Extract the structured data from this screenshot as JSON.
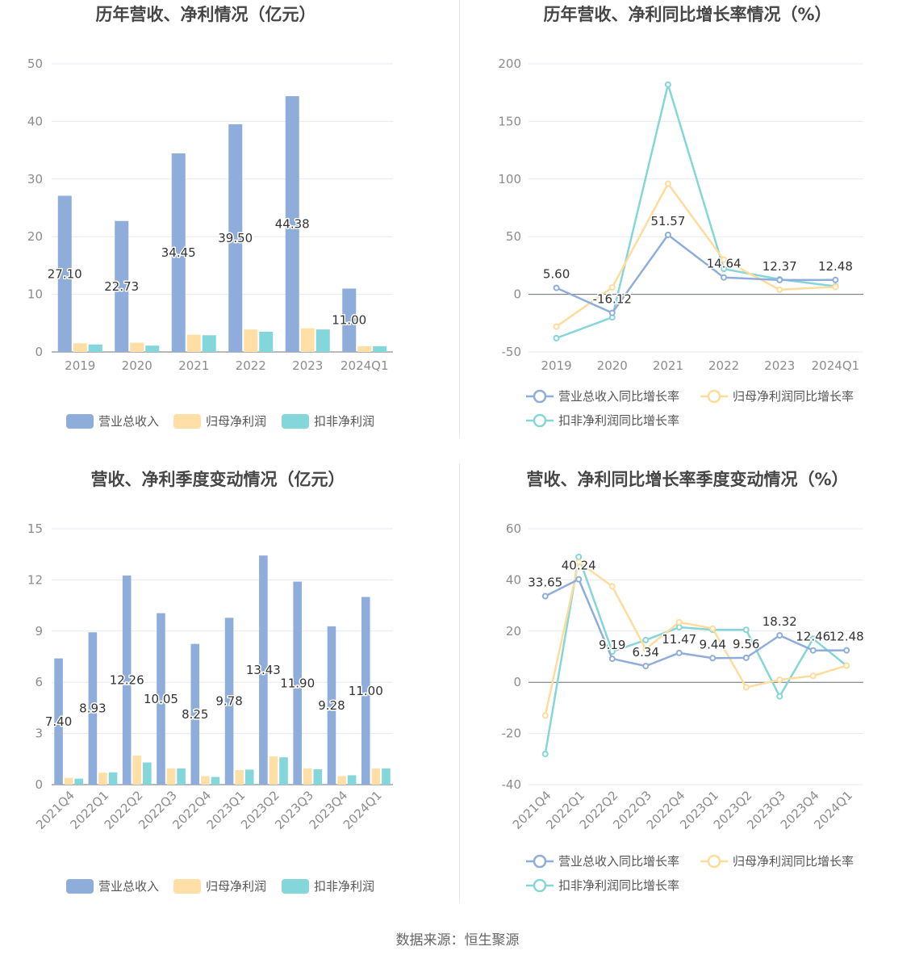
{
  "colors": {
    "revenue": "#8fadda",
    "net_profit": "#ffdfa5",
    "deducted_profit": "#83d6d9",
    "revenue_line": "#8fadda",
    "net_profit_line": "#ffdc9c",
    "deducted_profit_line": "#84d6d8",
    "grid": "#e6e9f0",
    "axis": "#6e7079"
  },
  "source": "数据来源：恒生聚源",
  "chart_data": [
    {
      "id": "annual-bar",
      "type": "bar",
      "title": "历年营收、净利情况（亿元）",
      "categories": [
        "2019",
        "2020",
        "2021",
        "2022",
        "2023",
        "2024Q1"
      ],
      "ylim": [
        0,
        50
      ],
      "yticks": [
        0,
        10,
        20,
        30,
        40,
        50
      ],
      "grid": true,
      "legend_position": "bottom",
      "label_series": 0,
      "series": [
        {
          "name": "营业总收入",
          "values": [
            27.1,
            22.73,
            34.45,
            39.5,
            44.38,
            11.0
          ],
          "labels": [
            "27.10",
            "22.73",
            "34.45",
            "39.50",
            "44.38",
            "11.00"
          ]
        },
        {
          "name": "归母净利润",
          "values": [
            1.5,
            1.6,
            3.0,
            3.9,
            4.1,
            1.0
          ]
        },
        {
          "name": "扣非净利润",
          "values": [
            1.3,
            1.1,
            2.9,
            3.5,
            3.9,
            1.0
          ]
        }
      ]
    },
    {
      "id": "annual-growth",
      "type": "line",
      "title": "历年营收、净利同比增长率情况（%）",
      "categories": [
        "2019",
        "2020",
        "2021",
        "2022",
        "2023",
        "2024Q1"
      ],
      "ylim": [
        -50,
        200
      ],
      "yticks": [
        -50,
        0,
        50,
        100,
        150,
        200
      ],
      "grid": true,
      "legend_position": "bottom",
      "label_series": 0,
      "series": [
        {
          "name": "营业总收入同比增长率",
          "values": [
            5.6,
            -16.12,
            51.57,
            14.64,
            12.37,
            12.48
          ],
          "labels": [
            "5.60",
            "-16.12",
            "51.57",
            "14.64",
            "12.37",
            "12.48"
          ]
        },
        {
          "name": "归母净利润同比增长率",
          "values": [
            -28,
            6,
            96,
            30,
            4,
            6.5
          ]
        },
        {
          "name": "扣非净利润同比增长率",
          "values": [
            -38,
            -20,
            182,
            22,
            13,
            7
          ]
        }
      ]
    },
    {
      "id": "quarterly-bar",
      "type": "bar",
      "title": "营收、净利季度变动情况（亿元）",
      "categories": [
        "2021Q4",
        "2022Q1",
        "2022Q2",
        "2022Q3",
        "2022Q4",
        "2023Q1",
        "2023Q2",
        "2023Q3",
        "2023Q4",
        "2024Q1"
      ],
      "ylim": [
        0,
        15
      ],
      "yticks": [
        0,
        3,
        6,
        9,
        12,
        15
      ],
      "grid": true,
      "legend_position": "bottom",
      "label_series": 0,
      "series": [
        {
          "name": "营业总收入",
          "values": [
            7.4,
            8.93,
            12.26,
            10.05,
            8.25,
            9.78,
            13.43,
            11.9,
            9.28,
            11.0
          ],
          "labels": [
            "7.40",
            "8.93",
            "12.26",
            "10.05",
            "8.25",
            "9.78",
            "13.43",
            "11.90",
            "9.28",
            "11.00"
          ]
        },
        {
          "name": "归母净利润",
          "values": [
            0.4,
            0.7,
            1.7,
            0.95,
            0.5,
            0.85,
            1.65,
            0.95,
            0.5,
            0.95
          ]
        },
        {
          "name": "扣非净利润",
          "values": [
            0.35,
            0.72,
            1.3,
            0.95,
            0.45,
            0.88,
            1.6,
            0.9,
            0.55,
            0.95
          ]
        }
      ]
    },
    {
      "id": "quarterly-growth",
      "type": "line",
      "title": "营收、净利同比增长率季度变动情况（%）",
      "categories": [
        "2021Q4",
        "2022Q1",
        "2022Q2",
        "2022Q3",
        "2022Q4",
        "2023Q1",
        "2023Q2",
        "2023Q3",
        "2023Q4",
        "2024Q1"
      ],
      "ylim": [
        -40,
        60
      ],
      "yticks": [
        -40,
        -20,
        0,
        20,
        40,
        60
      ],
      "grid": true,
      "legend_position": "bottom",
      "label_series": 0,
      "series": [
        {
          "name": "营业总收入同比增长率",
          "values": [
            33.65,
            40.24,
            9.19,
            6.34,
            11.47,
            9.44,
            9.56,
            18.32,
            12.46,
            12.48
          ],
          "labels": [
            "33.65",
            "40.24",
            "9.19",
            "6.34",
            "11.47",
            "9.44",
            "9.56",
            "18.32",
            "12.46",
            "12.48"
          ]
        },
        {
          "name": "归母净利润同比增长率",
          "values": [
            -13,
            47,
            37.5,
            13,
            23.5,
            21,
            -2,
            1,
            2.5,
            6.5
          ]
        },
        {
          "name": "扣非净利润同比增长率",
          "values": [
            -28,
            49,
            12,
            16.5,
            21.5,
            20.5,
            20.5,
            -5.5,
            17,
            6.5
          ]
        }
      ]
    }
  ]
}
